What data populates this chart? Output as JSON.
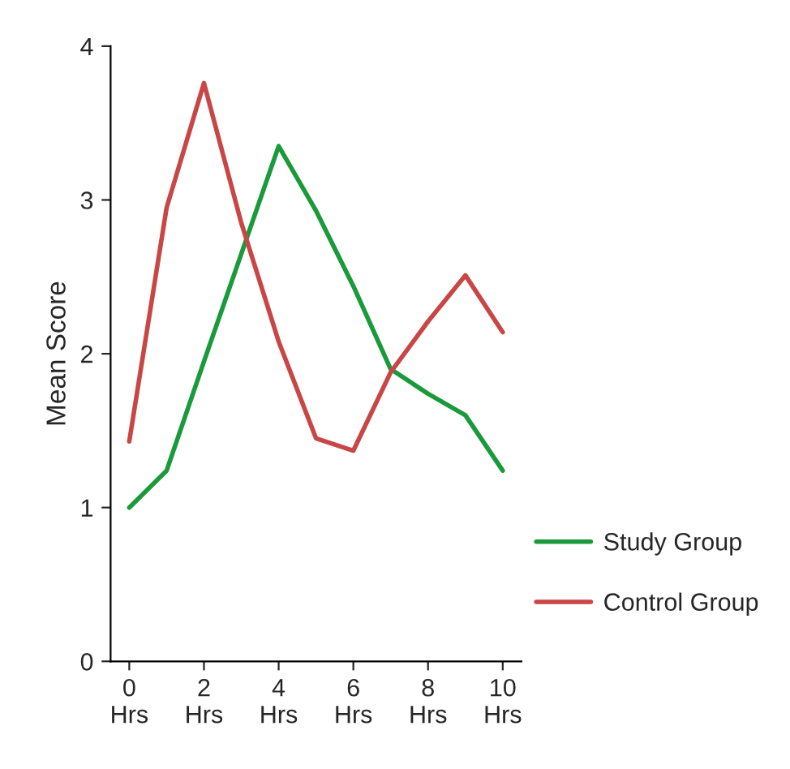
{
  "chart_data": {
    "type": "line",
    "ylabel": "Mean Score",
    "x": [
      0,
      1,
      2,
      3,
      4,
      5,
      6,
      7,
      8,
      9,
      10
    ],
    "xlim": [
      -0.5,
      10.5
    ],
    "xticks": [
      {
        "value": 0,
        "label": "0\nHrs"
      },
      {
        "value": 2,
        "label": "2\nHrs"
      },
      {
        "value": 4,
        "label": "4\nHrs"
      },
      {
        "value": 6,
        "label": "6\nHrs"
      },
      {
        "value": 8,
        "label": "8\nHrs"
      },
      {
        "value": 10,
        "label": "10\nHrs"
      }
    ],
    "ylim": [
      0,
      4
    ],
    "yticks": [
      0,
      1,
      2,
      3,
      4
    ],
    "grid": false,
    "legend": "bottom right",
    "marker": "none",
    "line_style": "solid",
    "series": [
      {
        "name": "Study Group",
        "color": "#1a9a3a",
        "values": [
          1.0,
          1.24,
          1.95,
          2.65,
          3.35,
          2.93,
          2.44,
          1.9,
          1.74,
          1.6,
          1.24
        ]
      },
      {
        "name": "Control Group",
        "color": "#c84646",
        "values": [
          1.43,
          2.95,
          3.76,
          2.85,
          2.08,
          1.45,
          1.37,
          1.88,
          2.21,
          2.51,
          2.14
        ]
      }
    ]
  }
}
